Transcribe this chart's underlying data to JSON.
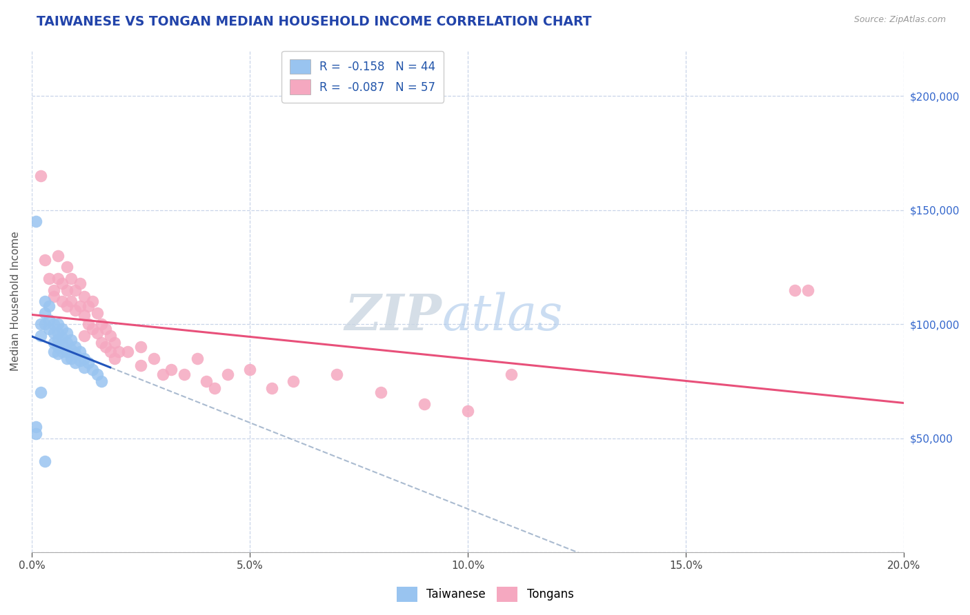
{
  "title": "TAIWANESE VS TONGAN MEDIAN HOUSEHOLD INCOME CORRELATION CHART",
  "source": "Source: ZipAtlas.com",
  "ylabel": "Median Household Income",
  "xlim": [
    0.0,
    0.2
  ],
  "ylim": [
    0,
    220000
  ],
  "yticks": [
    0,
    50000,
    100000,
    150000,
    200000
  ],
  "xticks": [
    0.0,
    0.05,
    0.1,
    0.15,
    0.2
  ],
  "background_color": "#ffffff",
  "grid_color": "#c8d4e8",
  "taiwanese_color": "#99c4f0",
  "tongan_color": "#f5a8c0",
  "taiwanese_line_color": "#2255bb",
  "tongan_line_color": "#e8507a",
  "dashed_line_color": "#aabbd0",
  "r_taiwanese": -0.158,
  "n_taiwanese": 44,
  "r_tongan": -0.087,
  "n_tongan": 57,
  "watermark_zip": "ZIP",
  "watermark_atlas": "atlas",
  "taiwanese_scatter_x": [
    0.001,
    0.002,
    0.002,
    0.003,
    0.003,
    0.003,
    0.004,
    0.004,
    0.004,
    0.005,
    0.005,
    0.005,
    0.005,
    0.006,
    0.006,
    0.006,
    0.006,
    0.006,
    0.007,
    0.007,
    0.007,
    0.007,
    0.008,
    0.008,
    0.008,
    0.008,
    0.009,
    0.009,
    0.009,
    0.01,
    0.01,
    0.01,
    0.011,
    0.011,
    0.012,
    0.012,
    0.013,
    0.014,
    0.015,
    0.016,
    0.001,
    0.001,
    0.002,
    0.003
  ],
  "taiwanese_scatter_y": [
    145000,
    100000,
    95000,
    110000,
    105000,
    100000,
    108000,
    102000,
    98000,
    100000,
    96000,
    92000,
    88000,
    100000,
    96000,
    93000,
    90000,
    87000,
    98000,
    94000,
    91000,
    88000,
    96000,
    92000,
    88000,
    85000,
    93000,
    89000,
    85000,
    90000,
    87000,
    83000,
    88000,
    84000,
    85000,
    81000,
    83000,
    80000,
    78000,
    75000,
    55000,
    52000,
    70000,
    40000
  ],
  "tongan_scatter_x": [
    0.002,
    0.003,
    0.004,
    0.005,
    0.005,
    0.006,
    0.006,
    0.007,
    0.007,
    0.008,
    0.008,
    0.008,
    0.009,
    0.009,
    0.01,
    0.01,
    0.011,
    0.011,
    0.012,
    0.012,
    0.012,
    0.013,
    0.013,
    0.014,
    0.014,
    0.015,
    0.015,
    0.016,
    0.016,
    0.017,
    0.017,
    0.018,
    0.018,
    0.019,
    0.019,
    0.02,
    0.022,
    0.025,
    0.025,
    0.028,
    0.03,
    0.032,
    0.035,
    0.038,
    0.04,
    0.042,
    0.045,
    0.05,
    0.055,
    0.06,
    0.07,
    0.08,
    0.09,
    0.1,
    0.11,
    0.175,
    0.178
  ],
  "tongan_scatter_y": [
    165000,
    128000,
    120000,
    115000,
    112000,
    130000,
    120000,
    118000,
    110000,
    125000,
    115000,
    108000,
    120000,
    110000,
    115000,
    106000,
    118000,
    108000,
    112000,
    104000,
    95000,
    108000,
    100000,
    110000,
    98000,
    105000,
    96000,
    100000,
    92000,
    98000,
    90000,
    95000,
    88000,
    92000,
    85000,
    88000,
    88000,
    90000,
    82000,
    85000,
    78000,
    80000,
    78000,
    85000,
    75000,
    72000,
    78000,
    80000,
    72000,
    75000,
    78000,
    70000,
    65000,
    62000,
    78000,
    115000,
    115000
  ]
}
